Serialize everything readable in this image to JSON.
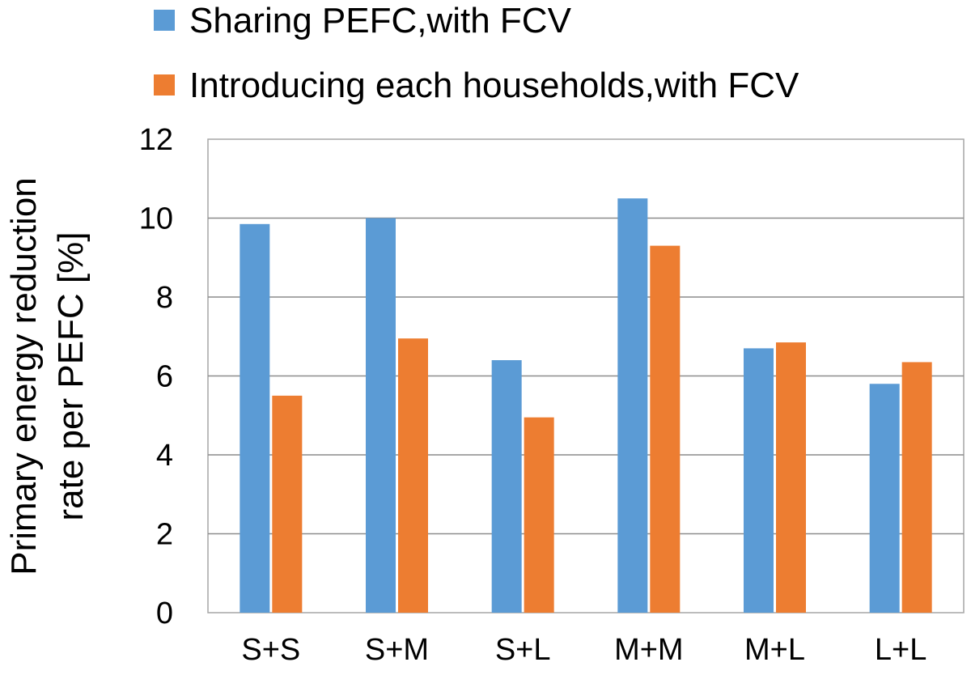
{
  "chart_data": {
    "type": "bar",
    "title": "",
    "xlabel": "",
    "ylabel_lines": [
      "Primary energy reduction",
      "rate per PEFC [%]"
    ],
    "categories": [
      "S+S",
      "S+M",
      "S+L",
      "M+M",
      "M+L",
      "L+L"
    ],
    "ylim": [
      0,
      12
    ],
    "yticks": [
      "0",
      "2",
      "4",
      "6",
      "8",
      "10",
      "12"
    ],
    "grid": true,
    "legend_position": "top",
    "series": [
      {
        "name": "Sharing PEFC,with FCV",
        "color": "#5B9BD5",
        "values": [
          9.85,
          10.0,
          6.4,
          10.5,
          6.7,
          5.8
        ]
      },
      {
        "name": "Introducing each households,with FCV",
        "color": "#ED7D31",
        "values": [
          5.5,
          6.95,
          4.95,
          9.3,
          6.85,
          6.35
        ]
      }
    ]
  }
}
